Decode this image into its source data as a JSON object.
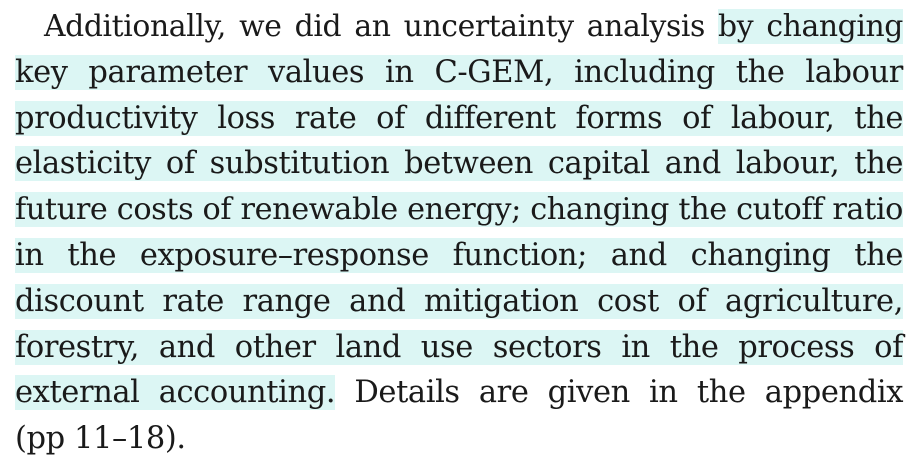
{
  "paragraph": {
    "highlight_color": "#dcf6f4",
    "lines": [
      {
        "plain_before": "Additionally, we did an uncertainty analysis ",
        "highlighted": "by changing",
        "plain_after": ""
      },
      {
        "plain_before": "",
        "highlighted": "key parameter values in C-GEM, including the labour",
        "plain_after": ""
      },
      {
        "plain_before": "",
        "highlighted": "productivity loss rate of different forms of labour, the",
        "plain_after": ""
      },
      {
        "plain_before": "",
        "highlighted": "elasticity of substitution between capital and labour, the",
        "plain_after": ""
      },
      {
        "plain_before": "",
        "highlighted": "future costs of renewable energy; changing the cutoff ratio",
        "plain_after": ""
      },
      {
        "plain_before": "",
        "highlighted": "in the exposure–response function; and changing the",
        "plain_after": ""
      },
      {
        "plain_before": "",
        "highlighted": "discount rate range and mitigation cost of agriculture,",
        "plain_after": ""
      },
      {
        "plain_before": "",
        "highlighted": "forestry, and other land use sectors in the process of",
        "plain_after": ""
      },
      {
        "plain_before": "",
        "highlighted": "external accounting.",
        "plain_after": " Details are given in the appendix"
      },
      {
        "plain_before": "(pp 11–18).",
        "highlighted": "",
        "plain_after": ""
      }
    ]
  }
}
